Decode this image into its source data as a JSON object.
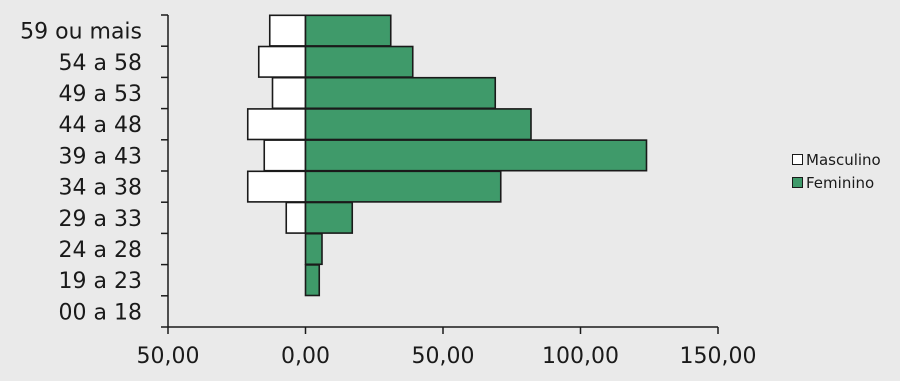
{
  "chart_data": {
    "type": "bar",
    "orientation": "horizontal",
    "title": "",
    "categories": [
      "00 a 18",
      "19 a 23",
      "24 a 28",
      "29 a 33",
      "34 a 38",
      "39 a 43",
      "44 a 48",
      "49 a 53",
      "54 a 58",
      "59 ou mais"
    ],
    "series": [
      {
        "name": "Masculino",
        "color": "#ffffff",
        "values": [
          0,
          0,
          0,
          -7,
          -21,
          -15,
          -21,
          -12,
          -17,
          -13
        ]
      },
      {
        "name": "Feminino",
        "color": "#3f9a6a",
        "values": [
          0,
          5,
          6,
          17,
          71,
          124,
          82,
          69,
          39,
          31
        ]
      }
    ],
    "xlim": [
      -50,
      150
    ],
    "xticks": [
      -50,
      0,
      50,
      100,
      150
    ],
    "xtick_labels": [
      "50,00",
      "0,00",
      "50,00",
      "100,00",
      "150,00"
    ],
    "xlabel": "",
    "ylabel": "",
    "grid": false,
    "legend_position": "right"
  }
}
